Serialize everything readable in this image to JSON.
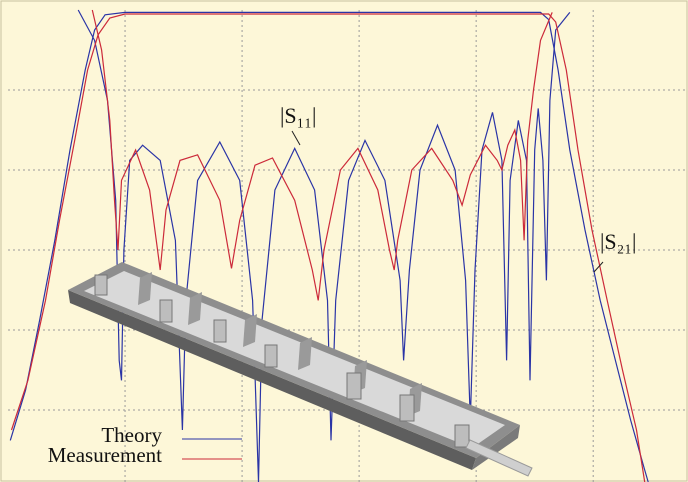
{
  "chart_data": {
    "type": "line",
    "xlim": [
      0,
      5.81
    ],
    "ylim": [
      -59,
      0
    ],
    "xticks": [
      1,
      2,
      3,
      4,
      5
    ],
    "yticks": [
      -50,
      -40,
      -30,
      -20,
      -10
    ],
    "grid": true,
    "annotations": [
      {
        "text": "|S₁₁|"
      },
      {
        "text": "|S₂₁|"
      }
    ],
    "series": [
      {
        "name": "Theory",
        "color": "#2a34a6",
        "lines": [
          {
            "x": [
              0.6,
              0.74,
              0.85,
              0.92,
              0.95,
              0.97,
              0.99,
              1.04,
              1.15,
              1.3,
              1.43,
              1.49,
              1.52,
              1.62,
              1.81,
              1.98,
              2.09,
              2.14,
              2.17,
              2.28,
              2.45,
              2.62,
              2.73,
              2.76,
              2.8,
              2.91,
              3.05,
              3.22,
              3.35,
              3.38,
              3.43,
              3.52,
              3.67,
              3.82,
              3.91,
              3.95,
              3.99,
              4.05,
              4.14,
              4.22,
              4.26,
              4.29,
              4.36,
              4.43,
              4.46,
              4.5,
              4.53,
              4.57,
              4.6,
              4.63,
              4.68,
              4.8
            ],
            "values": [
              0,
              -3.8,
              -11.3,
              -23.8,
              -43.8,
              -46.3,
              -30,
              -18.8,
              -16.9,
              -18.8,
              -28.8,
              -52.5,
              -36.3,
              -21.3,
              -16.5,
              -21.3,
              -36.3,
              -59,
              -38.8,
              -22.5,
              -17.3,
              -22.5,
              -36.3,
              -53.8,
              -36.3,
              -21.3,
              -16.3,
              -21.3,
              -33.8,
              -43.8,
              -32.5,
              -20,
              -14.4,
              -20,
              -33.8,
              -51.3,
              -32.5,
              -17.5,
              -12.8,
              -18.8,
              -43.8,
              -21.3,
              -13.8,
              -18.8,
              -46.3,
              -17.5,
              -12.3,
              -18.8,
              -33.8,
              -11.3,
              -2.5,
              -0.3
            ]
          },
          {
            "x": [
              0.02,
              0.15,
              0.27,
              0.4,
              0.53,
              0.66,
              0.74,
              0.83,
              1,
              4.55,
              4.62,
              4.7,
              4.8,
              4.93,
              5.06,
              5.19,
              5.32,
              5.44,
              5.47
            ],
            "values": [
              -53.8,
              -47.5,
              -38.8,
              -28.8,
              -17.5,
              -7.5,
              -2.5,
              -0.6,
              -0.3,
              -0.3,
              -1.2,
              -7.5,
              -17.5,
              -27.5,
              -36.3,
              -43.8,
              -51.3,
              -57.5,
              -59
            ]
          }
        ]
      },
      {
        "name": "Measurement",
        "color": "#cc2a3a",
        "lines": [
          {
            "x": [
              0.72,
              0.8,
              0.87,
              0.91,
              0.94,
              0.97,
              1.09,
              1.21,
              1.3,
              1.35,
              1.47,
              1.62,
              1.81,
              1.91,
              1.98,
              2.11,
              2.26,
              2.45,
              2.6,
              2.65,
              2.7,
              2.84,
              2.99,
              3.16,
              3.26,
              3.3,
              3.33,
              3.45,
              3.62,
              3.8,
              3.88,
              3.95,
              4.08,
              4.18,
              4.22,
              4.27,
              4.33,
              4.38,
              4.41,
              4.44,
              4.49,
              4.55,
              4.65
            ],
            "values": [
              0,
              -5,
              -13.8,
              -23.8,
              -30,
              -21.3,
              -17.5,
              -22.5,
              -32.5,
              -25,
              -18.8,
              -18.1,
              -23.8,
              -32.3,
              -26.3,
              -19.4,
              -18.5,
              -23.8,
              -32.5,
              -36.3,
              -30,
              -20,
              -17.3,
              -22.5,
              -30,
              -32.5,
              -28.8,
              -20,
              -17.3,
              -21.3,
              -24.4,
              -20.6,
              -16.9,
              -18.8,
              -20,
              -16.9,
              -15,
              -18.8,
              -28.8,
              -16.3,
              -10,
              -3.8,
              -0.3
            ]
          },
          {
            "x": [
              0.03,
              0.17,
              0.32,
              0.44,
              0.57,
              0.68,
              0.77,
              0.87,
              1,
              4.62,
              4.68,
              4.77,
              4.87,
              4.99,
              5.12,
              5.25,
              5.37,
              5.44
            ],
            "values": [
              -52.5,
              -46.3,
              -36.3,
              -26.3,
              -16.3,
              -7.5,
              -3.1,
              -1,
              -0.5,
              -0.5,
              -1.5,
              -7.5,
              -17.5,
              -27.5,
              -36.3,
              -45,
              -52.5,
              -59
            ]
          }
        ]
      }
    ]
  }
}
